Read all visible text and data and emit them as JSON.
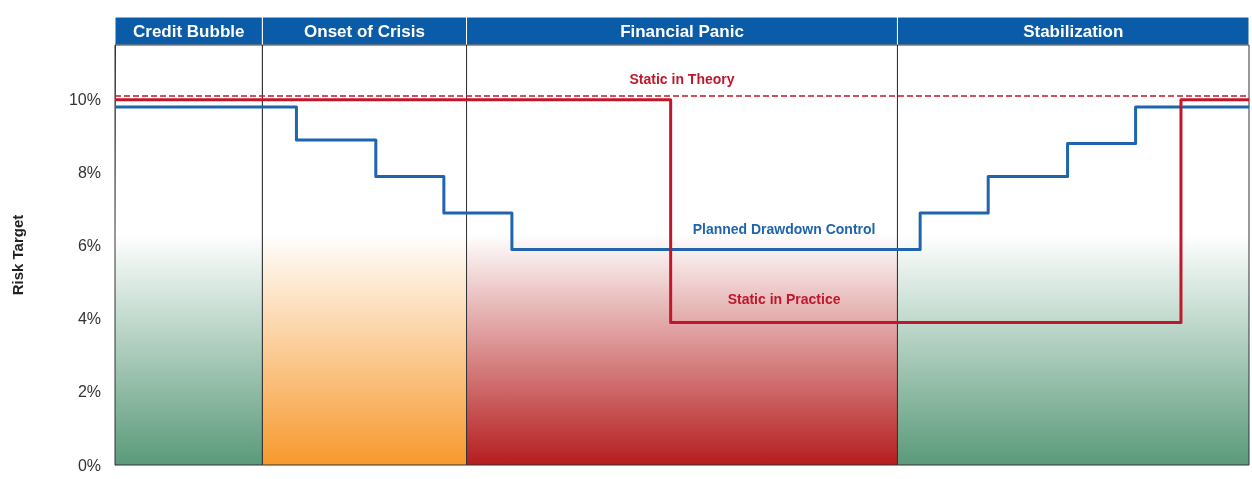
{
  "chart_data": {
    "type": "step",
    "ylabel": "Risk Target",
    "ylim": [
      0,
      11.5
    ],
    "categories": [
      null,
      null,
      null,
      null,
      null,
      null,
      null,
      null,
      null,
      null,
      null,
      null,
      null,
      null,
      null,
      null,
      null,
      null,
      null,
      null,
      null,
      null,
      null,
      null,
      null,
      null,
      null,
      null,
      null,
      null,
      null,
      null,
      null,
      null,
      null,
      null,
      null,
      null,
      null,
      null,
      null,
      null,
      null,
      null,
      null,
      null,
      null,
      null,
      null,
      null,
      null,
      null,
      null,
      null,
      null,
      null,
      null,
      null,
      null,
      null,
      null,
      null,
      null,
      null,
      null,
      null,
      null,
      null,
      null,
      null,
      null,
      null,
      null,
      null,
      null,
      null,
      null,
      null,
      null,
      null,
      null,
      null,
      null,
      null,
      null,
      null,
      null,
      null,
      null,
      null,
      null,
      null,
      null,
      null,
      null,
      null,
      null,
      null,
      null,
      null,
      null
    ],
    "yticks": [
      {
        "value": 0,
        "label": "0%"
      },
      {
        "value": 2,
        "label": "2%"
      },
      {
        "value": 4,
        "label": "4%"
      },
      {
        "value": 6,
        "label": "6%"
      },
      {
        "value": 8,
        "label": "8%"
      },
      {
        "value": 10,
        "label": "10%"
      }
    ],
    "grid": false,
    "legend": false,
    "marker": "none",
    "line_style": "solid",
    "series": [
      {
        "name": "Planned Drawdown Control",
        "color": "#1f64ad",
        "values": [
          9.8,
          9.8,
          9.8,
          9.8,
          9.8,
          9.8,
          9.8,
          9.8,
          9.8,
          9.8,
          9.8,
          9.8,
          9.8,
          9.8,
          9.8,
          9.8,
          8.9,
          8.9,
          8.9,
          8.9,
          8.9,
          8.9,
          8.9,
          7.9,
          7.9,
          7.9,
          7.9,
          7.9,
          7.9,
          6.9,
          6.9,
          6.9,
          6.9,
          6.9,
          6.9,
          5.9,
          5.9,
          5.9,
          5.9,
          5.9,
          5.9,
          5.9,
          5.9,
          5.9,
          5.9,
          5.9,
          5.9,
          5.9,
          5.9,
          5.9,
          5.9,
          5.9,
          5.9,
          5.9,
          5.9,
          5.9,
          5.9,
          5.9,
          5.9,
          5.9,
          5.9,
          5.9,
          5.9,
          5.9,
          5.9,
          5.9,
          5.9,
          5.9,
          5.9,
          5.9,
          5.9,
          6.9,
          6.9,
          6.9,
          6.9,
          6.9,
          6.9,
          7.9,
          7.9,
          7.9,
          7.9,
          7.9,
          7.9,
          7.9,
          8.8,
          8.8,
          8.8,
          8.8,
          8.8,
          8.8,
          9.8,
          9.8,
          9.8,
          9.8,
          9.8,
          9.8,
          9.8,
          9.8,
          9.8,
          9.8,
          9.8
        ]
      },
      {
        "name": "Static in Practice",
        "color": "#c0172b",
        "values": [
          10,
          10,
          10,
          10,
          10,
          10,
          10,
          10,
          10,
          10,
          10,
          10,
          10,
          10,
          10,
          10,
          10,
          10,
          10,
          10,
          10,
          10,
          10,
          10,
          10,
          10,
          10,
          10,
          10,
          10,
          10,
          10,
          10,
          10,
          10,
          10,
          10,
          10,
          10,
          10,
          10,
          10,
          10,
          10,
          10,
          10,
          10,
          10,
          10,
          3.9,
          3.9,
          3.9,
          3.9,
          3.9,
          3.9,
          3.9,
          3.9,
          3.9,
          3.9,
          3.9,
          3.9,
          3.9,
          3.9,
          3.9,
          3.9,
          3.9,
          3.9,
          3.9,
          3.9,
          3.9,
          3.9,
          3.9,
          3.9,
          3.9,
          3.9,
          3.9,
          3.9,
          3.9,
          3.9,
          3.9,
          3.9,
          3.9,
          3.9,
          3.9,
          3.9,
          3.9,
          3.9,
          3.9,
          3.9,
          3.9,
          3.9,
          3.9,
          3.9,
          3.9,
          10,
          10,
          10,
          10,
          10,
          10,
          10
        ]
      }
    ],
    "ref_lines": [
      {
        "axis": "y",
        "value": 10.1,
        "label": "Static in Theory",
        "color": "#c0172b",
        "line_style": "dashed"
      }
    ],
    "annotations": [
      "Credit Bubble",
      "Onset of Crisis",
      "Financial Panic",
      "Stabilization"
    ]
  }
}
